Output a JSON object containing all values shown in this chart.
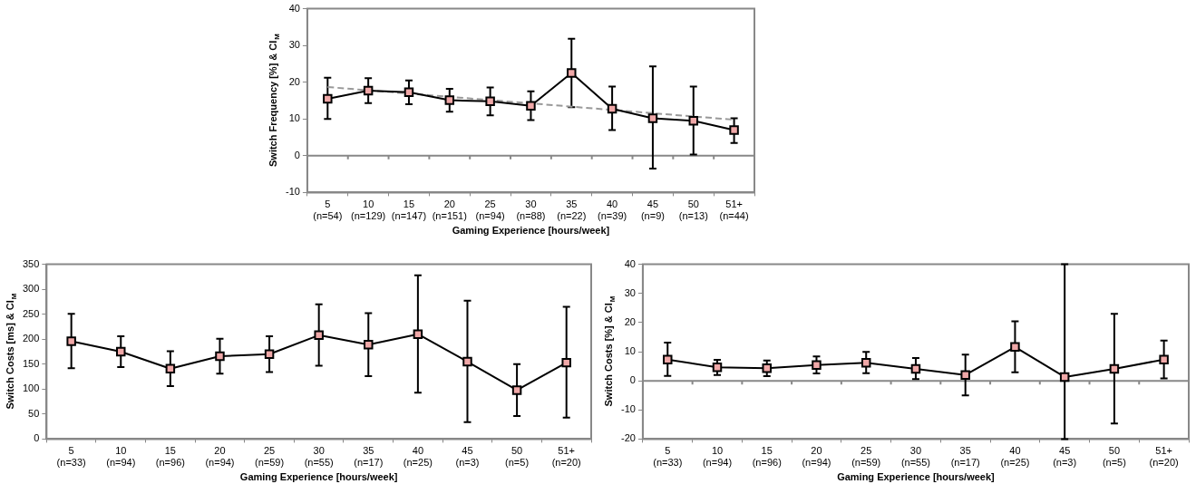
{
  "chart_data": [
    {
      "type": "line",
      "ylabel": "Switch Frequency [%] & CI$_{M}$",
      "xlabel": "Gaming Experience [hours/week]",
      "categories": [
        "5\n(n=54)",
        "10\n(n=129)",
        "15\n(n=147)",
        "20\n(n=151)",
        "25\n(n=94)",
        "30\n(n=88)",
        "35\n(n=22)",
        "40\n(n=39)",
        "45\n(n=9)",
        "50\n(n=13)",
        "51+\n(n=44)"
      ],
      "series": [
        {
          "color": "#000000",
          "colors": [
            "#f0a8a8",
            "#f0a8a8",
            "#f0a8a8",
            "#f0a8a8",
            "#f0a8a8",
            "#f0a8a8",
            "#f0a8a8",
            "#f0a8a8",
            "#f0a8a8",
            "#f0a8a8",
            "#f0a8a8"
          ],
          "marker": "square",
          "line_style": "solid",
          "values": [
            15.5,
            17.7,
            17.3,
            15.1,
            14.8,
            13.6,
            22.5,
            12.8,
            10.2,
            9.5,
            7
          ],
          "errors": [
            [
              10,
              21.2
            ],
            [
              14.3,
              21.1
            ],
            [
              14,
              20.5
            ],
            [
              12,
              18.2
            ],
            [
              11,
              18.6
            ],
            [
              9.7,
              17.5
            ],
            [
              13.2,
              31.8
            ],
            [
              7,
              18.8
            ],
            [
              -3.5,
              24.3
            ],
            [
              0.3,
              18.8
            ],
            [
              3.5,
              10.2
            ]
          ]
        },
        {
          "type": "line",
          "color": "#999999",
          "marker": "none",
          "line_style": "dashed",
          "values": [
            18.7,
            null,
            null,
            null,
            null,
            null,
            null,
            null,
            null,
            null,
            9.8
          ]
        }
      ],
      "ylim": [
        -10,
        40
      ],
      "yticks": [
        -10,
        0,
        10,
        20,
        30,
        40
      ]
    },
    {
      "type": "line",
      "ylabel": "Switch Costs [ms] & CI$_{M}$",
      "xlabel": "Gaming Experience [hours/week]",
      "categories": [
        "5\n(n=33)",
        "10\n(n=94)",
        "15\n(n=96)",
        "20\n(n=94)",
        "25\n(n=59)",
        "30\n(n=55)",
        "35\n(n=17)",
        "40\n(n=25)",
        "45\n(n=3)",
        "50\n(n=5)",
        "51+\n(n=20)"
      ],
      "series": [
        {
          "color": "#000000",
          "colors": [
            "#f0a8a8",
            "#f0a8a8",
            "#f0a8a8",
            "#f0a8a8",
            "#f0a8a8",
            "#f0a8a8",
            "#f0a8a8",
            "#f0a8a8",
            "#f0a8a8",
            "#f0a8a8",
            "#f0a8a8"
          ],
          "marker": "square",
          "line_style": "solid",
          "values": [
            196,
            175,
            141,
            166,
            170,
            208,
            189,
            210,
            155,
            98,
            153
          ],
          "errors": [
            [
              142,
              251
            ],
            [
              144,
              206
            ],
            [
              106,
              176
            ],
            [
              131,
              201
            ],
            [
              134,
              206
            ],
            [
              147,
              270
            ],
            [
              126,
              252
            ],
            [
              93,
              328
            ],
            [
              34,
              277
            ],
            [
              46,
              150
            ],
            [
              43,
              265
            ]
          ]
        }
      ],
      "ylim": [
        0,
        350
      ],
      "yticks": [
        0,
        50,
        100,
        150,
        200,
        250,
        300,
        350
      ]
    },
    {
      "type": "line",
      "ylabel": "Switch Costs [%] & CI$_{M}$",
      "xlabel": "Gaming Experience [hours/week]",
      "categories": [
        "5\n(n=33)",
        "10\n(n=94)",
        "15\n(n=96)",
        "20\n(n=94)",
        "25\n(n=59)",
        "30\n(n=55)",
        "35\n(n=17)",
        "40\n(n=25)",
        "45\n(n=3)",
        "50\n(n=5)",
        "51+\n(n=20)"
      ],
      "series": [
        {
          "color": "#000000",
          "colors": [
            "#f0a8a8",
            "#f0a8a8",
            "#f0a8a8",
            "#f0a8a8",
            "#f0a8a8",
            "#f0a8a8",
            "#f0a8a8",
            "#f0a8a8",
            "#f0a8a8",
            "#f0a8a8",
            "#f0a8a8"
          ],
          "marker": "square",
          "line_style": "solid",
          "values": [
            7.3,
            4.6,
            4.3,
            5.4,
            6.2,
            4.1,
            2,
            11.6,
            1.3,
            4.1,
            7.3
          ],
          "errors": [
            [
              1.7,
              13.1
            ],
            [
              2,
              7.2
            ],
            [
              1.6,
              7
            ],
            [
              2.5,
              8.4
            ],
            [
              2.6,
              9.9
            ],
            [
              0.6,
              7.8
            ],
            [
              -5,
              9
            ],
            [
              2.9,
              20.4
            ],
            [
              -20,
              40
            ],
            [
              -14.7,
              23
            ],
            [
              0.8,
              13.8
            ]
          ]
        }
      ],
      "ylim": [
        -20,
        40
      ],
      "yticks": [
        -20,
        -10,
        0,
        10,
        20,
        30,
        40
      ]
    }
  ]
}
